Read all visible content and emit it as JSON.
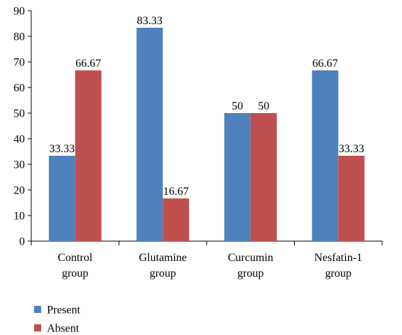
{
  "chart_data": {
    "type": "bar",
    "title": "",
    "xlabel": "",
    "ylabel": "",
    "categories": [
      [
        "Control",
        "group"
      ],
      [
        "Glutamine",
        "group"
      ],
      [
        "Curcumin",
        "group"
      ],
      [
        "Nesfatin-1",
        "group"
      ]
    ],
    "series": [
      {
        "name": "Present",
        "color": "#4f81bd",
        "values": [
          33.33,
          83.33,
          50,
          66.67
        ],
        "labels": [
          "33.33",
          "83.33",
          "50",
          "66.67"
        ]
      },
      {
        "name": "Absent",
        "color": "#c0504d",
        "values": [
          66.67,
          16.67,
          50,
          33.33
        ],
        "labels": [
          "66.67",
          "16.67",
          "50",
          "33.33"
        ]
      }
    ],
    "ylim": [
      0,
      90
    ],
    "yticks": [
      0,
      10,
      20,
      30,
      40,
      50,
      60,
      70,
      80,
      90
    ],
    "grid": false,
    "legend_position": "bottom-left"
  }
}
